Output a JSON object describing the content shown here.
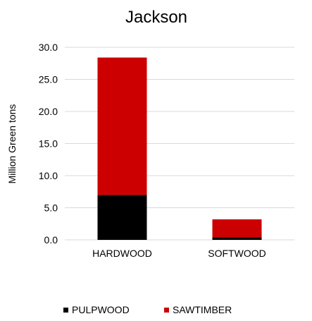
{
  "chart_data": {
    "type": "bar",
    "stacked": true,
    "title": "Jackson",
    "xlabel": "",
    "ylabel": "Million Green tons",
    "categories": [
      "HARDWOOD",
      "SOFTWOOD"
    ],
    "series": [
      {
        "name": "PULPWOOD",
        "values": [
          7.0,
          0.4
        ],
        "color": "#000000"
      },
      {
        "name": "SAWTIMBER",
        "values": [
          21.4,
          2.8
        ],
        "color": "#cc0000"
      }
    ],
    "ylim": [
      0,
      30
    ],
    "yticks": [
      "0.0",
      "5.0",
      "10.0",
      "15.0",
      "20.0",
      "25.0",
      "30.0"
    ],
    "grid": true,
    "legend_position": "bottom"
  }
}
